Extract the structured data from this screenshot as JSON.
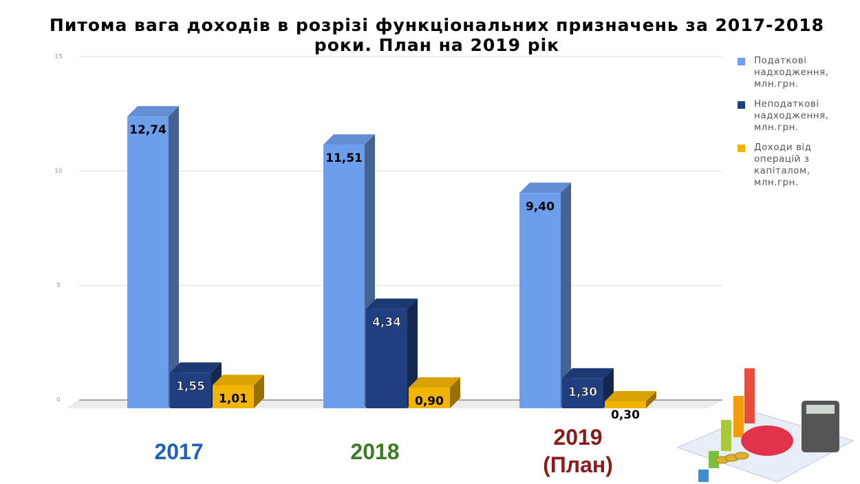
{
  "chart_data": {
    "type": "bar3d",
    "title": "Питома вага доходів в розрізі функціональних призначень за 2017-2018 роки. План на 2019 рік",
    "categories": [
      "2017",
      "2018",
      "2019 (План)"
    ],
    "category_colors": [
      "#1f5fbf",
      "#3a7d22",
      "#8b1a1a"
    ],
    "series": [
      {
        "name": "Податкові надходження, млн.грн.",
        "color": "#6d9eeb",
        "values": [
          12.74,
          11.51,
          9.4
        ],
        "value_labels": [
          "12,74",
          "11,51",
          "9,40"
        ]
      },
      {
        "name": "Неподаткові надходження, млн.грн.",
        "color": "#1f3f80",
        "values": [
          1.55,
          4.34,
          1.3
        ],
        "value_labels": [
          "1,55",
          "4,34",
          "1,30"
        ]
      },
      {
        "name": "Доходи від операцій з капіталом, млн.грн.",
        "color": "#f2b400",
        "values": [
          1.01,
          0.9,
          0.3
        ],
        "value_labels": [
          "1,01",
          "0,90",
          "0,30"
        ]
      }
    ],
    "ylim": [
      0,
      15
    ],
    "yticks": [
      0,
      5,
      10,
      15
    ],
    "grid": true,
    "legend": "right"
  }
}
